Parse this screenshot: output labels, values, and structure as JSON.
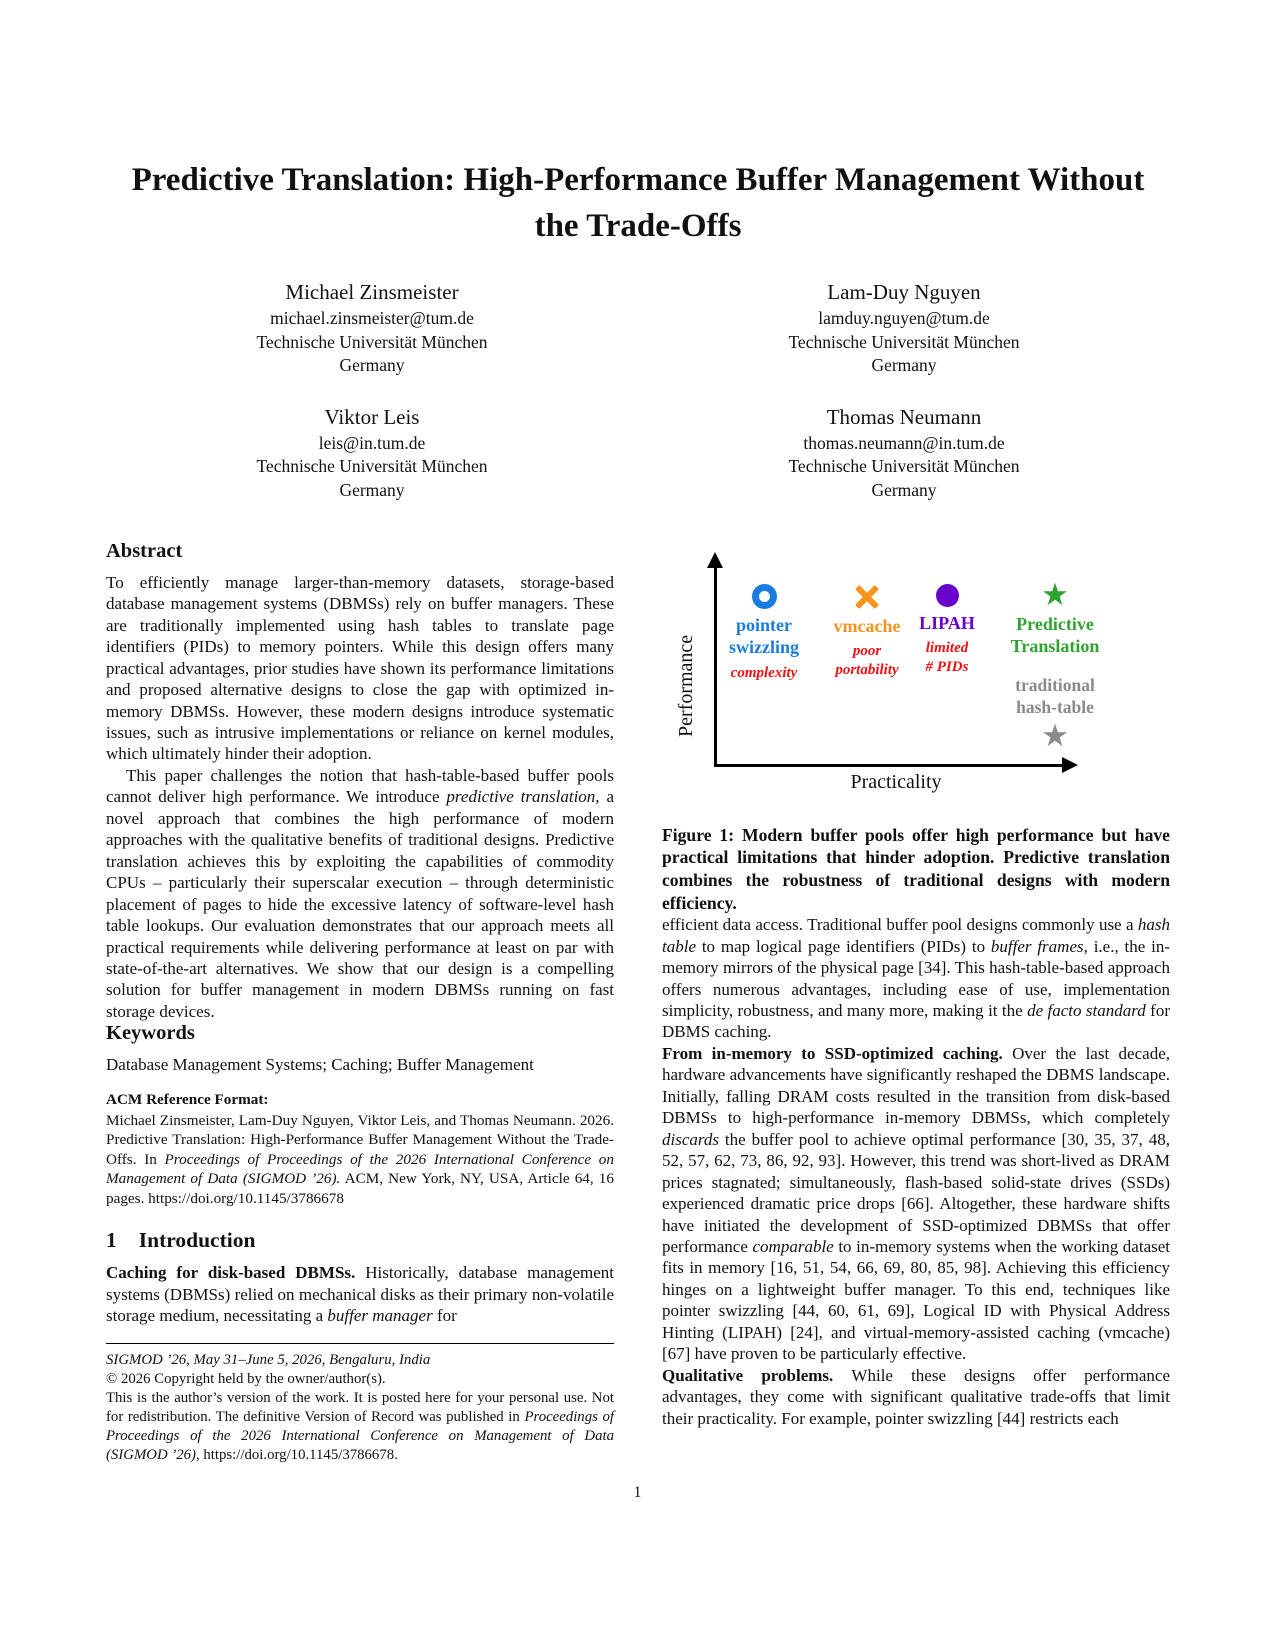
{
  "colors": {
    "blue": "#1b7ce0",
    "orange": "#f7941d",
    "purple": "#6a00cc",
    "green": "#2ea32e",
    "gray": "#8a8a8a",
    "red": "#ee1111"
  },
  "page": {
    "number": "1"
  },
  "title": "Predictive Translation: High-Performance Buffer Management Without the Trade-Offs",
  "authors": [
    {
      "name": "Michael Zinsmeister",
      "email": "michael.zinsmeister@tum.de",
      "affiliation": "Technische Universität München",
      "country": "Germany"
    },
    {
      "name": "Lam-Duy Nguyen",
      "email": "lamduy.nguyen@tum.de",
      "affiliation": "Technische Universität München",
      "country": "Germany"
    },
    {
      "name": "Viktor Leis",
      "email": "leis@in.tum.de",
      "affiliation": "Technische Universität München",
      "country": "Germany"
    },
    {
      "name": "Thomas Neumann",
      "email": "thomas.neumann@in.tum.de",
      "affiliation": "Technische Universität München",
      "country": "Germany"
    }
  ],
  "abstract": {
    "heading": "Abstract",
    "p1": "To efficiently manage larger-than-memory datasets, storage-based database management systems (DBMSs) rely on buffer managers. These are traditionally implemented using hash tables to translate page identifiers (PIDs) to memory pointers. While this design offers many practical advantages, prior studies have shown its performance limitations and proposed alternative designs to close the gap with optimized in-memory DBMSs. However, these modern designs introduce systematic issues, such as intrusive implementations or reliance on kernel modules, which ultimately hinder their adoption.",
    "p2_parts": [
      {
        "t": "This paper challenges the notion that hash-table-based buffer pools cannot deliver high performance. We introduce "
      },
      {
        "t": "predictive translation",
        "s": "i"
      },
      {
        "t": ", a novel approach that combines the high performance of modern approaches with the qualitative benefits of traditional designs. Predictive translation achieves this by exploiting the capabilities of commodity CPUs – particularly their superscalar execution – through deterministic placement of pages to hide the excessive latency of software-level hash table lookups. Our evaluation demonstrates that our approach meets all practical requirements while delivering performance at least on par with state-of-the-art alternatives. We show that our design is a compelling solution for buffer management in modern DBMSs running on fast storage devices."
      }
    ]
  },
  "keywords": {
    "heading": "Keywords",
    "text": "Database Management Systems; Caching; Buffer Management"
  },
  "acm_ref": {
    "heading": "ACM Reference Format:",
    "parts": [
      {
        "t": "Michael Zinsmeister, Lam-Duy Nguyen, Viktor Leis, and Thomas Neumann. 2026. Predictive Translation: High-Performance Buffer Management Without the Trade-Offs. In "
      },
      {
        "t": "Proceedings of Proceedings of the 2026 International Conference on Management of Data (SIGMOD ’26).",
        "s": "i"
      },
      {
        "t": " ACM, New York, NY, USA, Article 64, 16 pages. https://doi.org/10.1145/3786678"
      }
    ]
  },
  "intro": {
    "number": "1",
    "heading": "Introduction",
    "p1_parts": [
      {
        "t": "Caching for disk-based DBMSs. ",
        "s": "b"
      },
      {
        "t": "Historically, database management systems (DBMSs) relied on mechanical disks as their primary non-volatile storage medium, necessitating a "
      },
      {
        "t": "buffer manager",
        "s": "i"
      },
      {
        "t": " for"
      }
    ]
  },
  "footnote": {
    "venue": "SIGMOD ’26, May 31–June 5, 2026, Bengaluru, India",
    "copyright": "© 2026 Copyright held by the owner/author(s).",
    "body_parts": [
      {
        "t": "This is the author’s version of the work. It is posted here for your personal use. Not for redistribution. The definitive Version of Record was published in "
      },
      {
        "t": "Proceedings of Proceedings of the 2026 International Conference on Management of Data (SIGMOD ’26)",
        "s": "i"
      },
      {
        "t": ", https://doi.org/10.1145/3786678."
      }
    ]
  },
  "figure1": {
    "ylabel": "Performance",
    "xlabel": "Practicality",
    "points": [
      {
        "marker": "open-circle",
        "color": "blue",
        "label": "pointer\nswizzling",
        "issue": "complexity",
        "performance": "high",
        "practicality": "low"
      },
      {
        "marker": "x-cross",
        "color": "orange",
        "label": "vmcache",
        "issue": "poor\nportability",
        "performance": "high",
        "practicality": "low-mid"
      },
      {
        "marker": "filled-circle",
        "color": "purple",
        "label": "LIPAH",
        "issue": "limited\n# PIDs",
        "performance": "high",
        "practicality": "mid"
      },
      {
        "marker": "star",
        "color": "green",
        "label": "Predictive\nTranslation",
        "issue": "",
        "performance": "high",
        "practicality": "high"
      },
      {
        "marker": "star",
        "color": "gray",
        "label": "traditional\nhash-table",
        "issue": "",
        "performance": "low",
        "practicality": "high"
      }
    ],
    "caption": "Figure 1: Modern buffer pools offer high performance but have practical limitations that hinder adoption. Predictive translation combines the robustness of traditional designs with modern efficiency."
  },
  "right_col": {
    "p1_parts": [
      {
        "t": "efficient data access. Traditional buffer pool designs commonly use a "
      },
      {
        "t": "hash table",
        "s": "i"
      },
      {
        "t": " to map logical page identifiers (PIDs) to "
      },
      {
        "t": "buffer frames",
        "s": "i"
      },
      {
        "t": ", i.e., the in-memory mirrors of the physical page [34]. This hash-table-based approach offers numerous advantages, including ease of use, implementation simplicity, robustness, and many more, making it the "
      },
      {
        "t": "de facto standard",
        "s": "i"
      },
      {
        "t": " for DBMS caching."
      }
    ],
    "p2_parts": [
      {
        "t": "From in-memory to SSD-optimized caching. ",
        "s": "b"
      },
      {
        "t": "Over the last decade, hardware advancements have significantly reshaped the DBMS landscape. Initially, falling DRAM costs resulted in the transition from disk-based DBMSs to high-performance in-memory DBMSs, which completely "
      },
      {
        "t": "discards",
        "s": "i"
      },
      {
        "t": " the buffer pool to achieve optimal performance [30, 35, 37, 48, 52, 57, 62, 73, 86, 92, 93]. However, this trend was short-lived as DRAM prices stagnated; simultaneously, flash-based solid-state drives (SSDs) experienced dramatic price drops [66]. Altogether, these hardware shifts have initiated the development of SSD-optimized DBMSs that offer performance "
      },
      {
        "t": "comparable",
        "s": "i"
      },
      {
        "t": " to in-memory systems when the working dataset fits in memory [16, 51, 54, 66, 69, 80, 85, 98]. Achieving this efficiency hinges on a lightweight buffer manager. To this end, techniques like pointer swizzling [44, 60, 61, 69], Logical ID with Physical Address Hinting (LIPAH) [24], and virtual-memory-assisted caching (vmcache) [67] have proven to be particularly effective."
      }
    ],
    "p3_parts": [
      {
        "t": "Qualitative problems. ",
        "s": "b"
      },
      {
        "t": "While these designs offer performance advantages, they come with significant qualitative trade-offs that limit their practicality. For example, pointer swizzling [44] restricts each"
      }
    ]
  }
}
